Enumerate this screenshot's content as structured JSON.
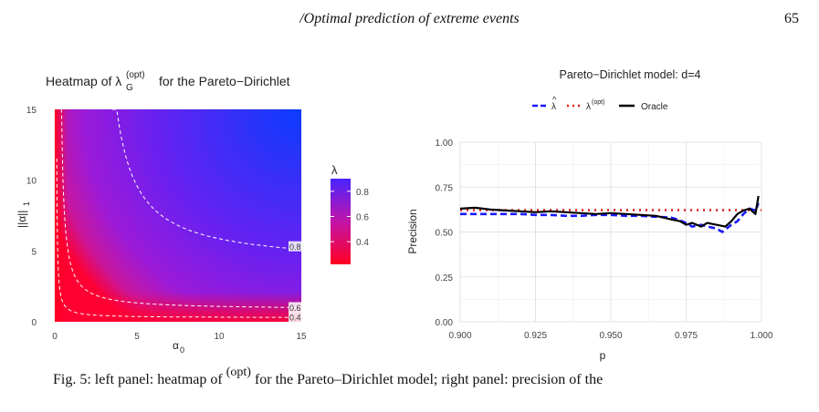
{
  "header": {
    "running_title": "/Optimal prediction of extreme events",
    "page_number": "65"
  },
  "footer_fragment": {
    "left": "Fig. 5: left panel: heatmap of",
    "sup": "(opt)",
    "right": "for the Pareto–Dirichlet model; right panel: precision of the"
  },
  "chart_data": [
    {
      "type": "heatmap",
      "title_prefix": "Heatmap of λ",
      "title_sub": "G",
      "title_sup": "(opt)",
      "title_suffix": "for the Pareto−Dirichlet",
      "xlabel": "α",
      "xlabel_sub": "0",
      "ylabel": "||α||",
      "ylabel_sub": "1",
      "xlim": [
        0,
        15
      ],
      "ylim": [
        0,
        15
      ],
      "x_ticks": [
        "0",
        "5",
        "10",
        "15"
      ],
      "y_ticks": [
        "0",
        "5",
        "10",
        "15"
      ],
      "legend": {
        "title": "λ",
        "ticks": [
          "0.8",
          "0.6",
          "0.4"
        ],
        "tick_values": [
          0.8,
          0.6,
          0.4
        ],
        "range": [
          0.22,
          0.9
        ],
        "placement": "right"
      },
      "contours": [
        {
          "level": 0.8,
          "label": "0.8"
        },
        {
          "level": 0.6,
          "label": "0.6"
        },
        {
          "level": 0.4,
          "label": "0.4"
        }
      ],
      "colors": {
        "low": "#ff0022",
        "mid": "#9a18d8",
        "high": "#0a3cff",
        "contour": "#ffffff"
      },
      "grid": true
    },
    {
      "type": "line",
      "title": "Pareto−Dirichlet model: d=4",
      "xlabel": "p",
      "ylabel": "Precision",
      "xlim": [
        0.9,
        1.0
      ],
      "ylim": [
        0,
        1
      ],
      "x_ticks": [
        "0.900",
        "0.925",
        "0.950",
        "0.975",
        "1.000"
      ],
      "y_ticks": [
        "0.00",
        "0.25",
        "0.50",
        "0.75",
        "1.00"
      ],
      "legend_placement": "top",
      "grid": true,
      "series": [
        {
          "name": "λ̂",
          "legend_main": "λ",
          "legend_hat": "^",
          "color": "#1a1aff",
          "style": "dashed",
          "x": [
            0.9,
            0.905,
            0.91,
            0.915,
            0.92,
            0.925,
            0.93,
            0.935,
            0.94,
            0.945,
            0.95,
            0.955,
            0.96,
            0.965,
            0.97,
            0.972,
            0.975,
            0.977,
            0.98,
            0.982,
            0.985,
            0.987,
            0.99,
            0.992,
            0.994,
            0.996,
            0.998,
            0.999
          ],
          "y": [
            0.6,
            0.6,
            0.6,
            0.6,
            0.6,
            0.595,
            0.595,
            0.59,
            0.59,
            0.595,
            0.595,
            0.59,
            0.59,
            0.585,
            0.58,
            0.57,
            0.55,
            0.53,
            0.54,
            0.53,
            0.52,
            0.5,
            0.54,
            0.56,
            0.6,
            0.63,
            0.62,
            0.66
          ]
        },
        {
          "name": "λ(opt)",
          "legend_main": "λ",
          "legend_sup": "(opt)",
          "color": "#e41a1c",
          "style": "dotted",
          "x": [
            0.9,
            1.0
          ],
          "y": [
            0.622,
            0.622
          ]
        },
        {
          "name": "Oracle",
          "legend_main": "Oracle",
          "color": "#000000",
          "style": "solid",
          "x": [
            0.9,
            0.905,
            0.91,
            0.915,
            0.92,
            0.925,
            0.93,
            0.935,
            0.94,
            0.945,
            0.95,
            0.955,
            0.96,
            0.965,
            0.97,
            0.973,
            0.975,
            0.977,
            0.98,
            0.982,
            0.985,
            0.988,
            0.99,
            0.992,
            0.994,
            0.996,
            0.998,
            0.999
          ],
          "y": [
            0.63,
            0.635,
            0.625,
            0.62,
            0.615,
            0.61,
            0.615,
            0.61,
            0.605,
            0.6,
            0.605,
            0.6,
            0.595,
            0.59,
            0.57,
            0.56,
            0.54,
            0.55,
            0.53,
            0.55,
            0.54,
            0.53,
            0.56,
            0.6,
            0.62,
            0.63,
            0.6,
            0.7
          ]
        }
      ]
    }
  ]
}
